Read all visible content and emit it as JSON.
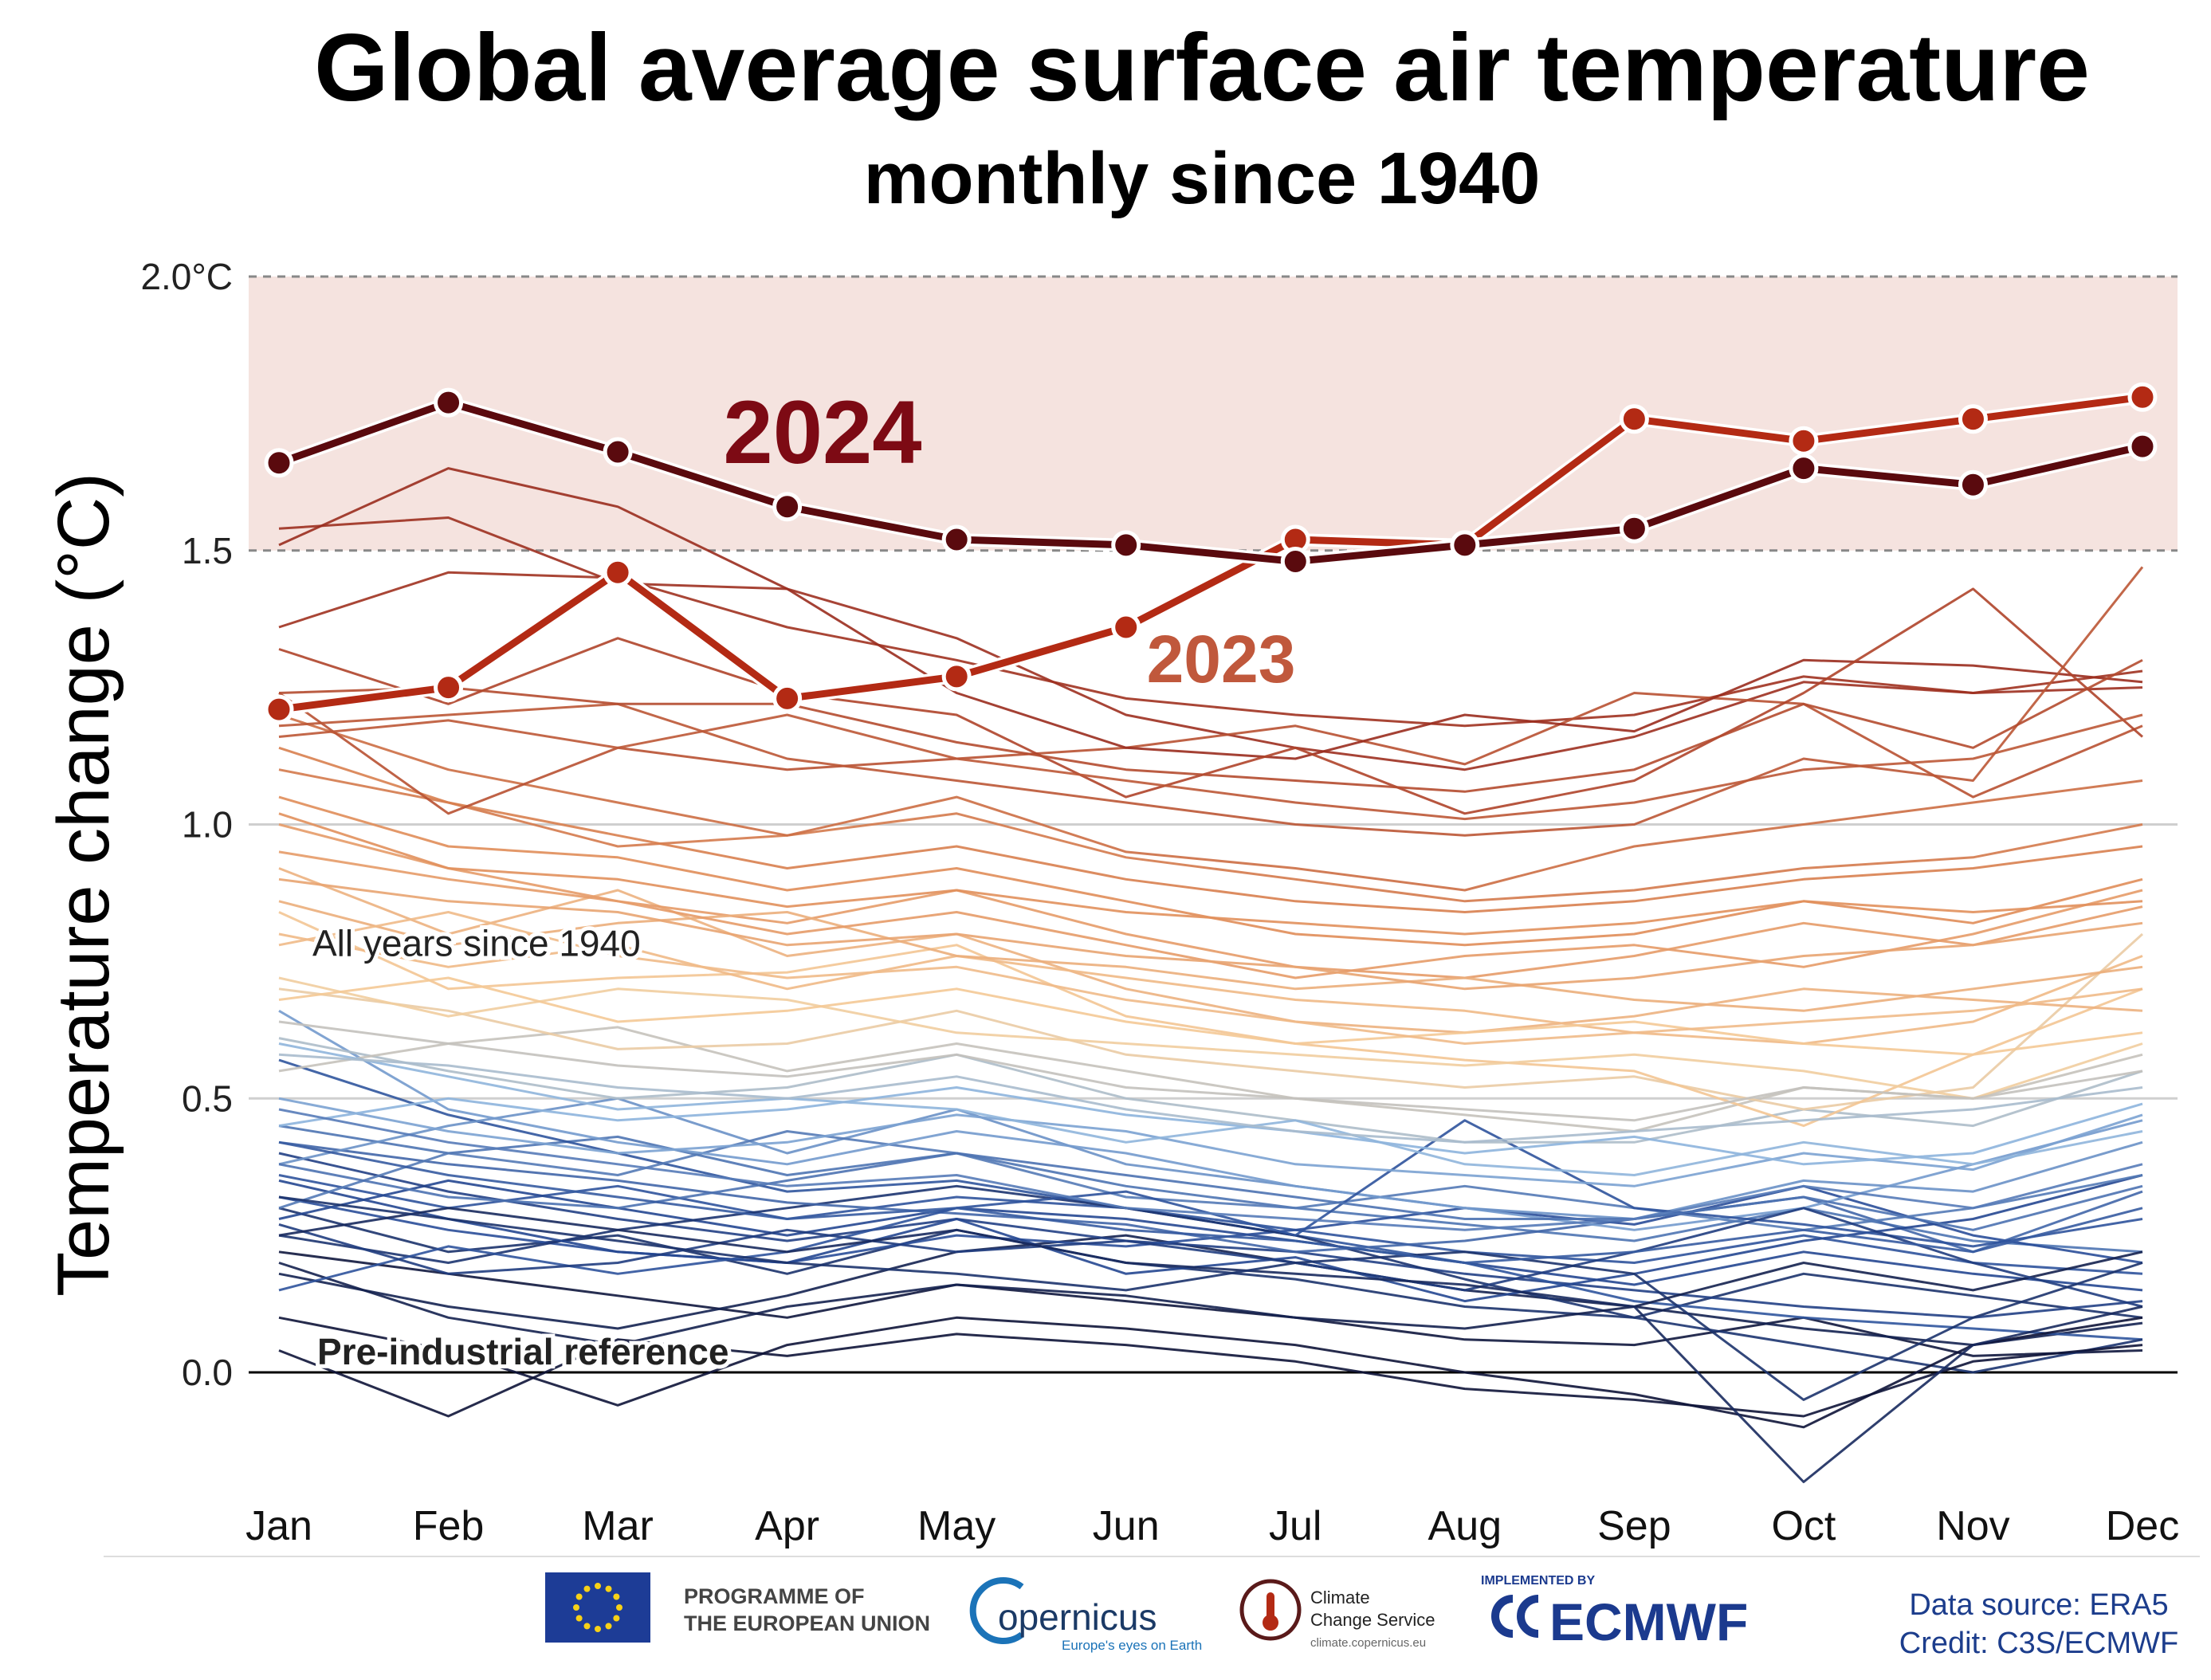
{
  "colors": {
    "band": "#f5e3df",
    "line2024": "#5a0a0e",
    "line2023": "#b32a14",
    "label2024": "#7d0a14",
    "label2023": "#c0583c",
    "footerBlue": "#1c3d8c",
    "ecmwfBlue": "#1b3a8e",
    "euBlue": "#1d3c96",
    "euStar": "#f7d117"
  },
  "title": "Global average surface air temperature",
  "subtitle": "monthly since 1940",
  "footer": {
    "eu_text_line1": "PROGRAMME OF",
    "eu_text_line2": "THE EUROPEAN UNION",
    "copernicus_name": "opernicus",
    "copernicus_tagline": "Europe's eyes on Earth",
    "c3s_line1": "Climate",
    "c3s_line2": "Change Service",
    "c3s_url": "climate.copernicus.eu",
    "ecmwf_implemented": "IMPLEMENTED BY",
    "ecmwf_name": "ECMWF",
    "data_source": "Data source: ERA5",
    "credit": "Credit: C3S/ECMWF"
  },
  "chart_data": {
    "type": "line",
    "title": "Global average surface air temperature",
    "subtitle": "monthly since 1940",
    "ylabel": "Temperature change  (°C)",
    "xlabel": "",
    "categories": [
      "Jan",
      "Feb",
      "Mar",
      "Apr",
      "May",
      "Jun",
      "Jul",
      "Aug",
      "Sep",
      "Oct",
      "Nov",
      "Dec"
    ],
    "ylim": [
      -0.2,
      2.0
    ],
    "yticks": [
      {
        "value": 0.0,
        "label": "0.0"
      },
      {
        "value": 0.5,
        "label": "0.5"
      },
      {
        "value": 1.0,
        "label": "1.0"
      },
      {
        "value": 1.5,
        "label": "1.5"
      },
      {
        "value": 2.0,
        "label": "2.0°C"
      }
    ],
    "band": [
      1.5,
      2.0
    ],
    "grid": true,
    "annotations": {
      "all_years": "All years since 1940",
      "pre_industrial": "Pre-industrial reference",
      "label_2024": "2024",
      "label_2023": "2023"
    },
    "highlight_series": [
      {
        "name": "2023",
        "values": [
          1.21,
          1.25,
          1.46,
          1.23,
          1.27,
          1.36,
          1.52,
          1.51,
          1.74,
          1.7,
          1.74,
          1.78
        ]
      },
      {
        "name": "2024",
        "values": [
          1.66,
          1.77,
          1.68,
          1.58,
          1.52,
          1.51,
          1.48,
          1.51,
          1.54,
          1.65,
          1.62,
          1.69
        ]
      }
    ],
    "background_series": [
      {
        "values": [
          0.3,
          0.22,
          0.25,
          0.18,
          0.26,
          0.2,
          0.17,
          0.12,
          0.1,
          0.18,
          0.14,
          0.1
        ]
      },
      {
        "values": [
          0.22,
          0.18,
          0.14,
          0.1,
          0.16,
          0.13,
          0.1,
          0.06,
          0.05,
          0.1,
          0.03,
          0.04
        ]
      },
      {
        "values": [
          0.36,
          0.3,
          0.34,
          0.28,
          0.32,
          0.3,
          0.26,
          0.22,
          0.2,
          0.25,
          0.2,
          0.18
        ]
      },
      {
        "values": [
          0.45,
          0.4,
          0.43,
          0.36,
          0.4,
          0.34,
          0.3,
          0.27,
          0.24,
          0.3,
          0.24,
          0.22
        ]
      },
      {
        "values": [
          0.18,
          0.12,
          0.08,
          0.14,
          0.22,
          0.25,
          0.2,
          0.15,
          0.12,
          0.08,
          0.05,
          0.09
        ]
      },
      {
        "values": [
          0.28,
          0.35,
          0.3,
          0.25,
          0.3,
          0.28,
          0.24,
          0.2,
          0.16,
          0.22,
          0.18,
          0.15
        ]
      },
      {
        "values": [
          0.4,
          0.33,
          0.28,
          0.24,
          0.28,
          0.24,
          0.22,
          0.18,
          0.15,
          0.12,
          0.1,
          0.13
        ]
      },
      {
        "values": [
          0.57,
          0.47,
          0.4,
          0.33,
          0.35,
          0.3,
          0.25,
          0.2,
          0.13,
          0.1,
          0.08,
          0.06
        ]
      },
      {
        "values": [
          0.32,
          0.26,
          0.22,
          0.2,
          0.25,
          0.23,
          0.26,
          0.3,
          0.27,
          0.34,
          0.25,
          0.2
        ]
      },
      {
        "values": [
          0.25,
          0.2,
          0.26,
          0.3,
          0.34,
          0.3,
          0.25,
          0.17,
          0.1,
          0.05,
          0.0,
          0.06
        ]
      },
      {
        "values": [
          0.42,
          0.38,
          0.35,
          0.31,
          0.29,
          0.27,
          0.22,
          0.24,
          0.28,
          0.32,
          0.22,
          0.33
        ]
      },
      {
        "values": [
          0.35,
          0.28,
          0.22,
          0.2,
          0.28,
          0.18,
          0.21,
          0.13,
          0.18,
          0.24,
          0.28,
          0.36
        ]
      },
      {
        "values": [
          0.2,
          0.1,
          0.05,
          0.12,
          0.16,
          0.14,
          0.1,
          0.08,
          0.12,
          0.2,
          0.15,
          0.22
        ]
      },
      {
        "values": [
          0.04,
          -0.08,
          0.06,
          0.03,
          0.07,
          0.05,
          0.02,
          -0.03,
          -0.05,
          -0.08,
          0.02,
          0.05
        ]
      },
      {
        "values": [
          0.1,
          0.04,
          -0.06,
          0.05,
          0.1,
          0.08,
          0.05,
          0.0,
          -0.04,
          -0.1,
          0.05,
          0.1
        ]
      },
      {
        "values": [
          0.38,
          0.45,
          0.5,
          0.4,
          0.48,
          0.38,
          0.34,
          0.3,
          0.28,
          0.35,
          0.33,
          0.42
        ]
      },
      {
        "values": [
          0.3,
          0.4,
          0.36,
          0.44,
          0.4,
          0.32,
          0.3,
          0.34,
          0.3,
          0.26,
          0.3,
          0.36
        ]
      },
      {
        "values": [
          0.66,
          0.48,
          0.42,
          0.38,
          0.44,
          0.4,
          0.34,
          0.3,
          0.26,
          0.3,
          0.38,
          0.46
        ]
      },
      {
        "values": [
          0.15,
          0.23,
          0.18,
          0.22,
          0.3,
          0.33,
          0.25,
          0.46,
          0.3,
          0.27,
          0.23,
          0.28
        ]
      },
      {
        "values": [
          0.27,
          0.18,
          0.2,
          0.26,
          0.22,
          0.24,
          0.2,
          0.15,
          0.22,
          0.3,
          0.2,
          0.12
        ]
      },
      {
        "values": [
          0.5,
          0.44,
          0.4,
          0.42,
          0.47,
          0.44,
          0.38,
          0.36,
          0.34,
          0.4,
          0.37,
          0.47
        ]
      },
      {
        "values": [
          0.61,
          0.55,
          0.5,
          0.52,
          0.58,
          0.5,
          0.46,
          0.42,
          0.42,
          0.48,
          0.45,
          0.55
        ]
      },
      {
        "values": [
          0.55,
          0.6,
          0.63,
          0.55,
          0.6,
          0.55,
          0.5,
          0.47,
          0.44,
          0.52,
          0.5,
          0.58
        ]
      },
      {
        "values": [
          0.7,
          0.66,
          0.59,
          0.6,
          0.66,
          0.58,
          0.55,
          0.52,
          0.54,
          0.48,
          0.52,
          0.8
        ]
      },
      {
        "values": [
          0.84,
          0.7,
          0.72,
          0.73,
          0.78,
          0.65,
          0.6,
          0.57,
          0.55,
          0.45,
          0.58,
          0.7
        ]
      },
      {
        "values": [
          0.45,
          0.5,
          0.46,
          0.48,
          0.52,
          0.47,
          0.44,
          0.4,
          0.43,
          0.38,
          0.4,
          0.49
        ]
      },
      {
        "values": [
          0.6,
          0.54,
          0.48,
          0.5,
          0.48,
          0.42,
          0.46,
          0.38,
          0.36,
          0.42,
          0.38,
          0.44
        ]
      },
      {
        "values": [
          0.38,
          0.32,
          0.3,
          0.35,
          0.4,
          0.36,
          0.32,
          0.28,
          0.28,
          0.32,
          0.26,
          0.34
        ]
      },
      {
        "values": [
          0.25,
          0.3,
          0.26,
          0.22,
          0.26,
          0.2,
          0.18,
          0.16,
          0.12,
          -0.2,
          0.05,
          0.12
        ]
      },
      {
        "values": [
          0.32,
          0.28,
          0.24,
          0.2,
          0.18,
          0.15,
          0.2,
          0.22,
          0.18,
          -0.05,
          0.1,
          0.2
        ]
      },
      {
        "values": [
          0.92,
          0.8,
          0.88,
          0.76,
          0.8,
          0.7,
          0.64,
          0.62,
          0.65,
          0.7,
          0.68,
          0.66
        ]
      },
      {
        "values": [
          0.8,
          0.74,
          0.78,
          0.7,
          0.76,
          0.72,
          0.68,
          0.66,
          0.62,
          0.6,
          0.64,
          0.76
        ]
      },
      {
        "values": [
          0.72,
          0.65,
          0.7,
          0.68,
          0.62,
          0.6,
          0.58,
          0.56,
          0.58,
          0.55,
          0.5,
          0.6
        ]
      },
      {
        "values": [
          0.95,
          0.9,
          0.86,
          0.82,
          0.88,
          0.8,
          0.74,
          0.72,
          0.76,
          0.82,
          0.78,
          0.85
        ]
      },
      {
        "values": [
          1.05,
          0.96,
          0.94,
          0.88,
          0.92,
          0.86,
          0.8,
          0.78,
          0.8,
          0.86,
          0.82,
          0.9
        ]
      },
      {
        "values": [
          0.86,
          0.78,
          0.82,
          0.84,
          0.76,
          0.74,
          0.7,
          0.72,
          0.68,
          0.66,
          0.7,
          0.74
        ]
      },
      {
        "values": [
          0.68,
          0.72,
          0.64,
          0.66,
          0.7,
          0.64,
          0.6,
          0.62,
          0.64,
          0.6,
          0.58,
          0.62
        ]
      },
      {
        "values": [
          1.1,
          1.04,
          0.96,
          0.98,
          1.02,
          0.94,
          0.9,
          0.86,
          0.88,
          0.92,
          0.94,
          1.0
        ]
      },
      {
        "values": [
          1.0,
          0.92,
          0.86,
          0.8,
          0.84,
          0.78,
          0.72,
          0.76,
          0.78,
          0.74,
          0.8,
          0.88
        ]
      },
      {
        "values": [
          0.78,
          0.84,
          0.76,
          0.72,
          0.74,
          0.68,
          0.64,
          0.6,
          0.62,
          0.64,
          0.66,
          0.7
        ]
      },
      {
        "values": [
          1.2,
          1.1,
          1.04,
          0.98,
          1.05,
          0.95,
          0.92,
          0.88,
          0.96,
          1.0,
          1.04,
          1.08
        ]
      },
      {
        "values": [
          1.14,
          1.04,
          0.98,
          0.92,
          0.96,
          0.9,
          0.86,
          0.84,
          0.86,
          0.9,
          0.92,
          0.96
        ]
      },
      {
        "values": [
          1.36,
          1.46,
          1.45,
          1.36,
          1.3,
          1.23,
          1.2,
          1.18,
          1.2,
          1.27,
          1.24,
          1.28
        ]
      },
      {
        "values": [
          1.54,
          1.56,
          1.44,
          1.43,
          1.34,
          1.2,
          1.14,
          1.1,
          1.16,
          1.26,
          1.24,
          1.25
        ]
      },
      {
        "values": [
          1.24,
          1.02,
          1.14,
          1.1,
          1.12,
          1.14,
          1.18,
          1.11,
          1.24,
          1.22,
          1.05,
          1.18
        ]
      },
      {
        "values": [
          1.51,
          1.65,
          1.58,
          1.43,
          1.24,
          1.14,
          1.12,
          1.2,
          1.17,
          1.3,
          1.29,
          1.26
        ]
      },
      {
        "values": [
          1.32,
          1.22,
          1.34,
          1.24,
          1.2,
          1.05,
          1.14,
          1.02,
          1.08,
          1.24,
          1.43,
          1.16
        ]
      },
      {
        "values": [
          1.18,
          1.2,
          1.22,
          1.12,
          1.08,
          1.04,
          1.0,
          0.98,
          1.0,
          1.12,
          1.08,
          1.47
        ]
      },
      {
        "values": [
          1.24,
          1.25,
          1.22,
          1.22,
          1.15,
          1.1,
          1.08,
          1.06,
          1.1,
          1.22,
          1.14,
          1.3
        ]
      },
      {
        "values": [
          1.16,
          1.19,
          1.14,
          1.2,
          1.12,
          1.08,
          1.04,
          1.01,
          1.04,
          1.1,
          1.12,
          1.2
        ]
      },
      {
        "values": [
          1.02,
          0.92,
          0.9,
          0.85,
          0.88,
          0.84,
          0.82,
          0.8,
          0.82,
          0.86,
          0.84,
          0.86
        ]
      },
      {
        "values": [
          0.9,
          0.86,
          0.84,
          0.78,
          0.8,
          0.76,
          0.74,
          0.7,
          0.72,
          0.76,
          0.78,
          0.82
        ]
      },
      {
        "values": [
          0.64,
          0.6,
          0.56,
          0.54,
          0.58,
          0.52,
          0.5,
          0.48,
          0.46,
          0.52,
          0.5,
          0.55
        ]
      },
      {
        "values": [
          0.58,
          0.56,
          0.52,
          0.5,
          0.54,
          0.48,
          0.44,
          0.42,
          0.44,
          0.46,
          0.48,
          0.52
        ]
      },
      {
        "values": [
          0.48,
          0.42,
          0.38,
          0.34,
          0.36,
          0.3,
          0.28,
          0.26,
          0.28,
          0.34,
          0.3,
          0.38
        ]
      },
      {
        "values": [
          0.42,
          0.36,
          0.32,
          0.28,
          0.3,
          0.26,
          0.24,
          0.2,
          0.22,
          0.26,
          0.22,
          0.3
        ]
      }
    ]
  }
}
